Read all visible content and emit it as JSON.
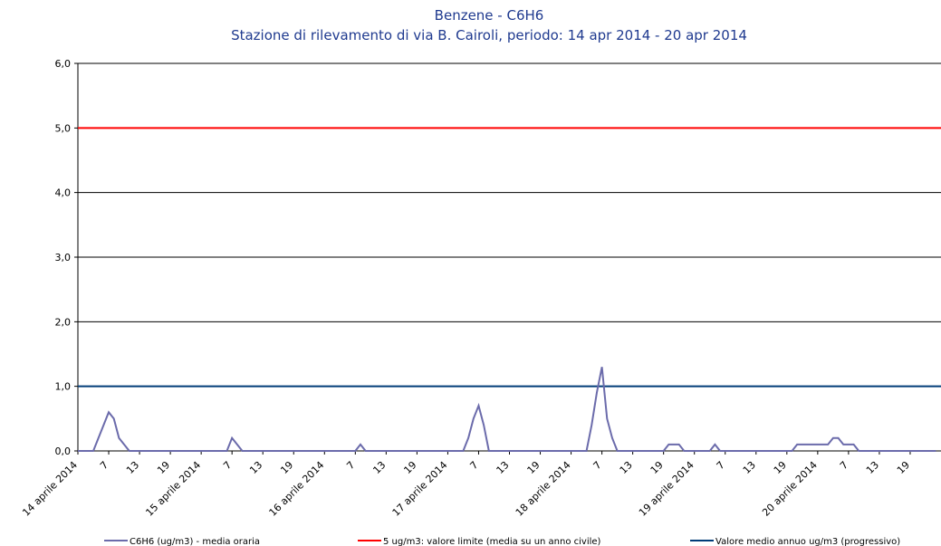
{
  "chart_data": {
    "type": "line",
    "title": "Benzene - C6H6",
    "subtitle": "Stazione di rilevamento di via B. Cairoli, periodo: 14 apr 2014 - 20 apr 2014",
    "categories": [
      "14 aprile 2014",
      null,
      null,
      null,
      null,
      null,
      "7",
      null,
      null,
      null,
      null,
      null,
      "13",
      null,
      null,
      null,
      null,
      null,
      "19",
      null,
      null,
      null,
      null,
      null,
      "15 aprile 2014",
      null,
      null,
      null,
      null,
      null,
      "7",
      null,
      null,
      null,
      null,
      null,
      "13",
      null,
      null,
      null,
      null,
      null,
      "19",
      null,
      null,
      null,
      null,
      null,
      "16 aprile 2014",
      null,
      null,
      null,
      null,
      null,
      "7",
      null,
      null,
      null,
      null,
      null,
      "13",
      null,
      null,
      null,
      null,
      null,
      "19",
      null,
      null,
      null,
      null,
      null,
      "17 aprile 2014",
      null,
      null,
      null,
      null,
      null,
      "7",
      null,
      null,
      null,
      null,
      null,
      "13",
      null,
      null,
      null,
      null,
      null,
      "19",
      null,
      null,
      null,
      null,
      null,
      "18 aprile 2014",
      null,
      null,
      null,
      null,
      null,
      "7",
      null,
      null,
      null,
      null,
      null,
      "13",
      null,
      null,
      null,
      null,
      null,
      "19",
      null,
      null,
      null,
      null,
      null,
      "19 aprile 2014",
      null,
      null,
      null,
      null,
      null,
      "7",
      null,
      null,
      null,
      null,
      null,
      "13",
      null,
      null,
      null,
      null,
      null,
      "19",
      null,
      null,
      null,
      null,
      null,
      "20 aprile 2014",
      null,
      null,
      null,
      null,
      null,
      "7",
      null,
      null,
      null,
      null,
      null,
      "13",
      null,
      null,
      null,
      null,
      null,
      "19",
      null,
      null,
      null,
      null,
      null
    ],
    "series": [
      {
        "name": "C6H6 (ug/m3)  - media oraria",
        "color": "#6b6bab",
        "values": [
          0,
          0,
          0,
          0,
          0.2,
          0.4,
          0.6,
          0.5,
          0.2,
          0.1,
          0,
          0,
          0,
          0,
          0,
          0,
          0,
          0,
          0,
          0,
          0,
          0,
          0,
          0,
          0,
          0,
          0,
          0,
          0,
          0,
          0.2,
          0.1,
          0,
          0,
          0,
          0,
          0,
          0,
          0,
          0,
          0,
          0,
          0,
          0,
          0,
          0,
          0,
          0,
          0,
          0,
          0,
          0,
          0,
          0,
          0,
          0.1,
          0,
          0,
          0,
          0,
          0,
          0,
          0,
          0,
          0,
          0,
          0,
          0,
          0,
          0,
          0,
          0,
          0,
          0,
          0,
          0,
          0.2,
          0.5,
          0.7,
          0.4,
          0,
          0,
          0,
          0,
          0,
          0,
          0,
          0,
          0,
          0,
          0,
          0,
          0,
          0,
          0,
          0,
          0,
          0,
          0,
          0,
          0.4,
          0.9,
          1.3,
          0.5,
          0.2,
          0,
          0,
          0,
          0,
          0,
          0,
          0,
          0,
          0,
          0,
          0.1,
          0.1,
          0.1,
          0,
          0,
          0,
          0,
          0,
          0,
          0.1,
          0,
          0,
          0,
          0,
          0,
          0,
          0,
          0,
          0,
          0,
          0,
          0,
          0,
          0,
          0,
          0.1,
          0.1,
          0.1,
          0.1,
          0.1,
          0.1,
          0.1,
          0.2,
          0.2,
          0.1,
          0.1,
          0.1,
          0,
          0,
          0,
          0,
          0,
          0,
          0,
          0,
          0,
          0,
          0,
          0,
          0,
          0,
          0,
          0
        ]
      }
    ],
    "reference_lines": [
      {
        "name": "5 ug/m3: valore limite (media su un anno civile)",
        "color": "#ff0000",
        "value": 5
      },
      {
        "name": "Valore medio annuo ug/m3 (progressivo)",
        "color": "#003c78",
        "value": 1
      }
    ],
    "ylim": [
      0,
      6
    ],
    "yticks": [
      {
        "value": 0,
        "label": "0,0"
      },
      {
        "value": 1,
        "label": "1,0"
      },
      {
        "value": 2,
        "label": "2,0"
      },
      {
        "value": 3,
        "label": "3,0"
      },
      {
        "value": 4,
        "label": "4,0"
      },
      {
        "value": 5,
        "label": "5,0"
      },
      {
        "value": 6,
        "label": "6,0"
      }
    ],
    "grid": true
  }
}
